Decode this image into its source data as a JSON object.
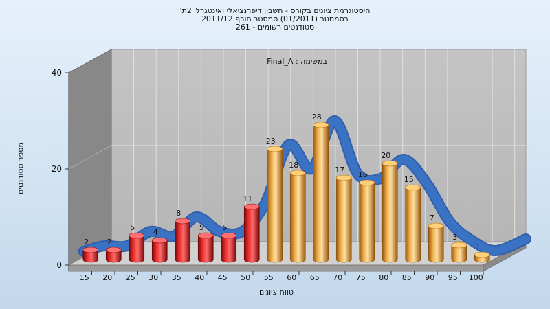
{
  "chart_data": {
    "type": "bar",
    "title": "היסטוגרמת ציונים בקורס - חשבון דיפרנציאלי ואינטגרלי 2ת'",
    "subtitle": [
      "בסמסטר (01/2011) סמסטר חורף 2011/12",
      "סטודנטים רשומים - 261"
    ],
    "annotation": "במשימה : Final_A",
    "xlabel": "טווח ציונים",
    "ylabel": "מספר סטודנטים",
    "categories": [
      "15",
      "20",
      "25",
      "30",
      "35",
      "40",
      "45",
      "50",
      "55",
      "60",
      "65",
      "70",
      "75",
      "80",
      "85",
      "90",
      "95",
      "100"
    ],
    "values": [
      2,
      2,
      5,
      4,
      8,
      5,
      5,
      11,
      23,
      18,
      28,
      17,
      16,
      20,
      15,
      7,
      3,
      1
    ],
    "yticks": [
      "0",
      "20",
      "40"
    ],
    "ylim": [
      0,
      40
    ],
    "grid": true,
    "fail_color": "#d42020",
    "pass_color": "#e8a040",
    "curve_color": "#3a72c4",
    "style": "3d-cylinder"
  }
}
